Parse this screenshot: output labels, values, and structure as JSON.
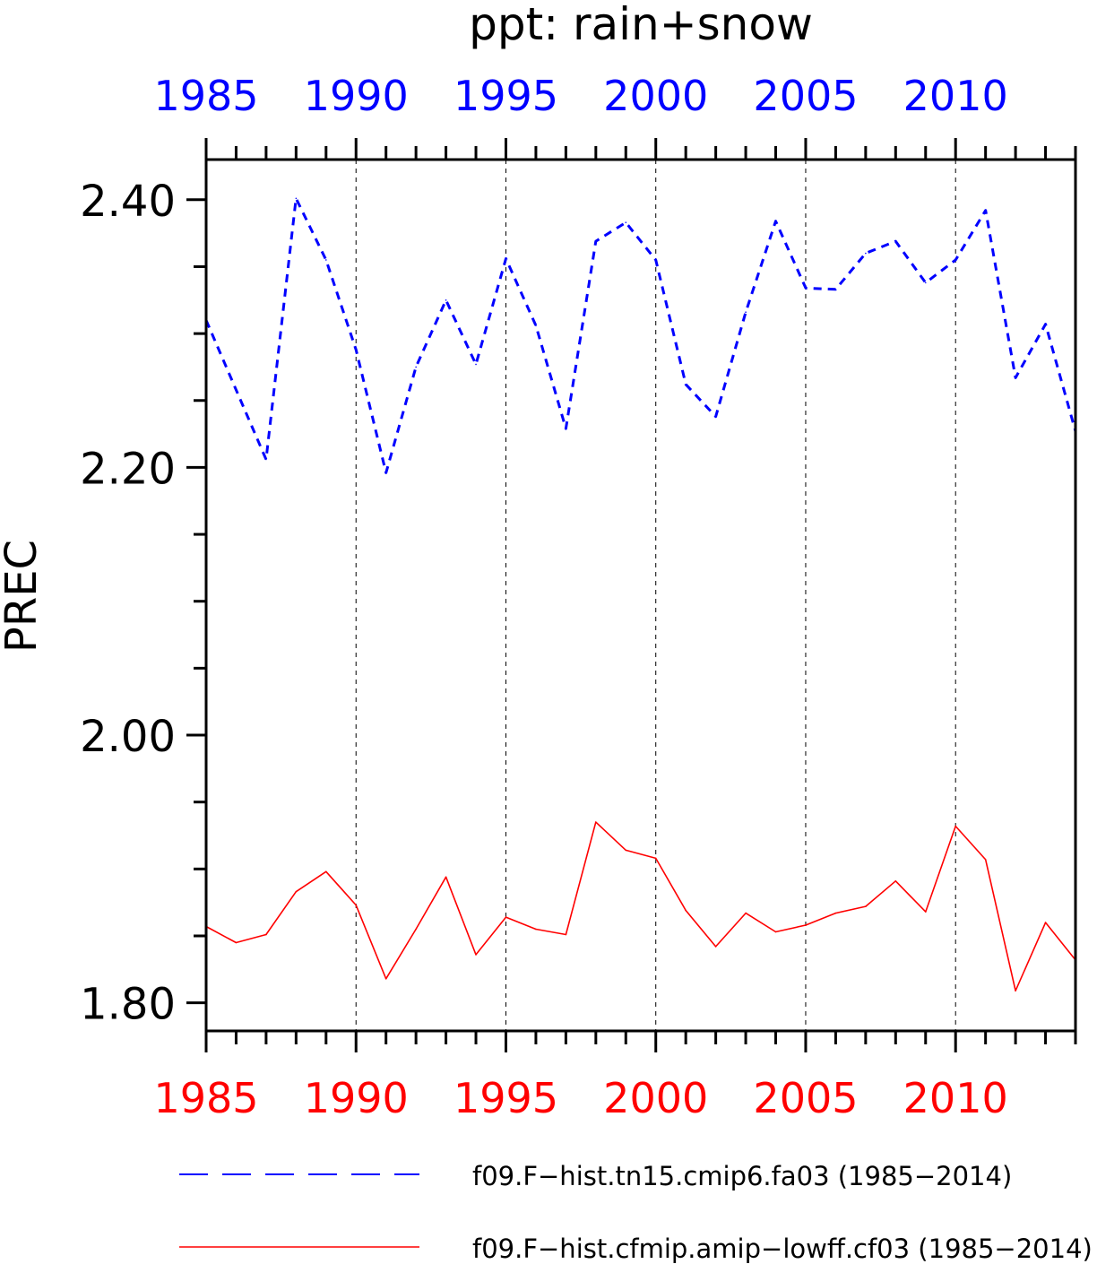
{
  "chart_data": {
    "type": "line",
    "title": "ppt: rain+snow",
    "ylabel": "PREC",
    "xlabel": "",
    "xlim": [
      1985,
      2014
    ],
    "ylim": [
      1.779,
      2.43
    ],
    "grid": "vertical dashed at major x ticks",
    "x_tick_labels": [
      "1985",
      "1990",
      "1995",
      "2000",
      "2005",
      "2010"
    ],
    "y_tick_labels": [
      "1.80",
      "2.00",
      "2.20",
      "2.40"
    ],
    "top_axis_color": "#0000ff",
    "bottom_axis_color": "#ff0000",
    "legend_position": "bottom",
    "x": [
      1985,
      1986,
      1987,
      1988,
      1989,
      1990,
      1991,
      1992,
      1993,
      1994,
      1995,
      1996,
      1997,
      1998,
      1999,
      2000,
      2001,
      2002,
      2003,
      2004,
      2005,
      2006,
      2007,
      2008,
      2009,
      2010,
      2011,
      2012,
      2013,
      2014
    ],
    "series": [
      {
        "name": "f09.F−hist.tn15.cmip6.fa03 (1985−2014)",
        "color": "#0000ff",
        "dash": "dashed",
        "values": [
          2.31,
          2.258,
          2.206,
          2.401,
          2.355,
          2.288,
          2.196,
          2.275,
          2.325,
          2.277,
          2.356,
          2.306,
          2.229,
          2.369,
          2.383,
          2.355,
          2.262,
          2.238,
          2.316,
          2.384,
          2.334,
          2.333,
          2.36,
          2.369,
          2.338,
          2.355,
          2.392,
          2.267,
          2.307,
          2.227
        ]
      },
      {
        "name": "f09.F−hist.cfmip.amip−lowff.cf03 (1985−2014)",
        "color": "#ff0000",
        "dash": "solid",
        "values": [
          1.857,
          1.845,
          1.851,
          1.883,
          1.898,
          1.873,
          1.818,
          1.855,
          1.894,
          1.836,
          1.864,
          1.855,
          1.851,
          1.935,
          1.914,
          1.908,
          1.869,
          1.842,
          1.867,
          1.853,
          1.858,
          1.867,
          1.872,
          1.891,
          1.868,
          1.932,
          1.907,
          1.809,
          1.86,
          1.832
        ]
      }
    ]
  }
}
